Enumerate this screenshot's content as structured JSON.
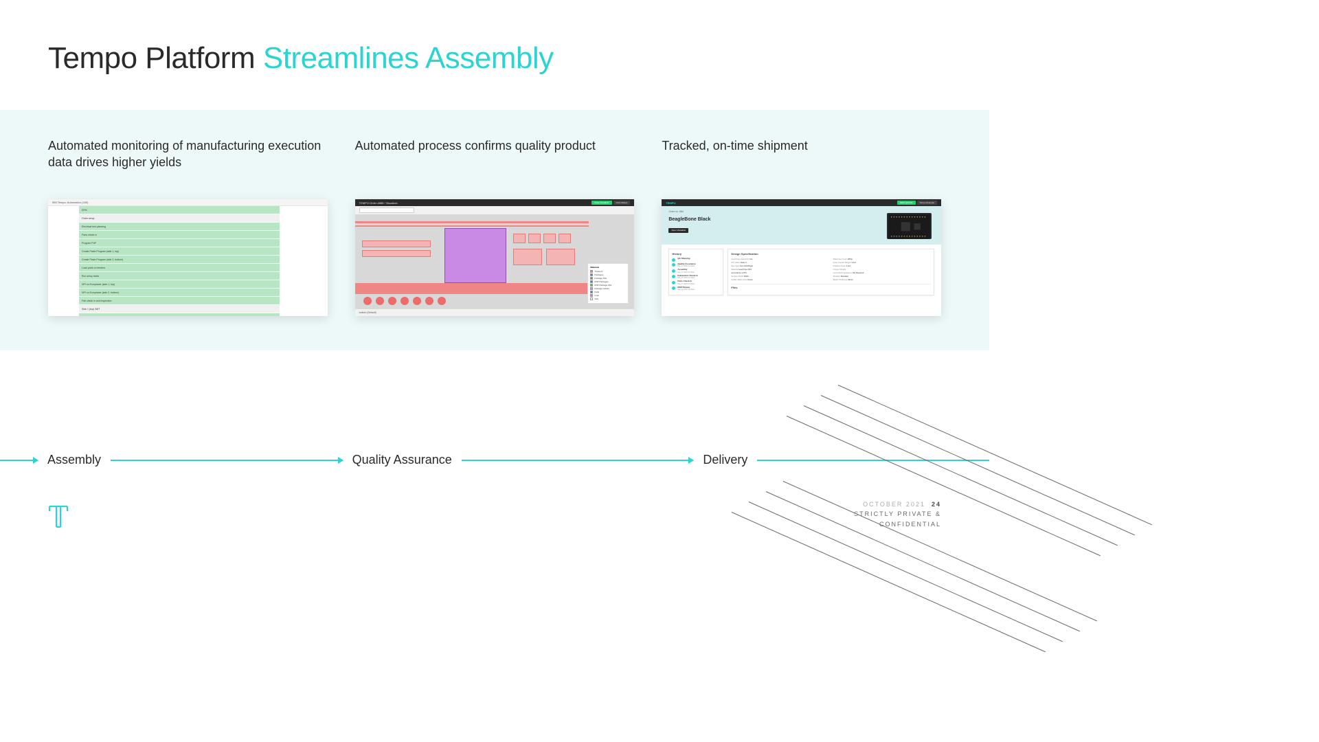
{
  "title": {
    "dark": "Tempo Platform ",
    "accent": "Streamlines Assembly"
  },
  "columns": [
    {
      "desc": "Automated monitoring of manufacturing execution data drives higher yields"
    },
    {
      "desc": "Automated process confirms quality product"
    },
    {
      "desc": "Tracked, on-time shipment"
    }
  ],
  "flow": [
    "Assembly",
    "Quality Assurance",
    "Delivery"
  ],
  "thumb1": {
    "header": "565 Tempo: Automation (165)",
    "rows": [
      {
        "cls": "green",
        "text": "DFM"
      },
      {
        "cls": "sub",
        "text": "Order setup"
      },
      {
        "cls": "green",
        "text": "Electrical test planning"
      },
      {
        "cls": "green",
        "text": "Parts check in"
      },
      {
        "cls": "green",
        "text": "Program PnP"
      },
      {
        "cls": "green",
        "text": "Create Paste Program (side 1, top)"
      },
      {
        "cls": "green",
        "text": "Create Paste Program (side 2, bottom)"
      },
      {
        "cls": "green",
        "text": "Load parts on feeders"
      },
      {
        "cls": "green",
        "text": "Run setup tasks"
      },
      {
        "cls": "green",
        "text": "NPI on Europlacer (side 1, top)"
      },
      {
        "cls": "green",
        "text": "NPI on Europlacer (side 2, bottom)"
      },
      {
        "cls": "green",
        "text": "Fab check in and inspection"
      },
      {
        "cls": "sub",
        "text": "Side 1 (top) SMT"
      },
      {
        "cls": "green",
        "text": "Paste first article (side 1, top)"
      }
    ]
  },
  "thumb2": {
    "title": "TEMPO  Order #885 / Visualizer",
    "btn_close": "Close Visualizer",
    "btn_user": "Chris Wilson",
    "legend_title": "Materials",
    "legend": [
      {
        "color": "#f08585",
        "label": "Traces R"
      },
      {
        "color": "#3a88d6",
        "label": "Packages"
      },
      {
        "color": "#888888",
        "label": "Package Fills"
      },
      {
        "color": "#3a88d6",
        "label": "DNP Packages"
      },
      {
        "color": "#60c060",
        "label": "DNP Package Fills"
      },
      {
        "color": "#c98ae6",
        "label": "Package Labels"
      },
      {
        "color": "#3a88d6",
        "label": "Pads"
      },
      {
        "color": "#d080e0",
        "label": "Inner"
      },
      {
        "color": "#ffffff",
        "label": "Vias"
      }
    ],
    "footer": "bottom (Default)"
  },
  "thumb3": {
    "logo": "TEMPO",
    "btn_quote": "NEW QUOTE",
    "btn_user": "Tempo Example",
    "order_meta": "Order no. 884",
    "product": "BeagleBone Black",
    "open_btn": "Open Visualizer",
    "history_title": "History",
    "history": [
      {
        "title": "QA  Shipping",
        "date": ""
      },
      {
        "title": "Quality Assurance",
        "date": "May 17 2020 01:00am"
      },
      {
        "title": "Assembly",
        "date": "May 17 2020 01:00am"
      },
      {
        "title": "Fabrication Check In",
        "date": "May 17 2020 01:00am"
      },
      {
        "title": "Parts Check In",
        "date": "May 17 2020 01:00am"
      },
      {
        "title": "DFM Review",
        "date": "May 17 2020 01:00am"
      }
    ],
    "spec_title": "Design Specification",
    "spec": [
      {
        "k": "Lead Free Assembly",
        "v": "Yes"
      },
      {
        "k": "Silkscreen Color",
        "v": "White"
      },
      {
        "k": "IPC Class",
        "v": "Class 2"
      },
      {
        "k": "Inner Copper Weight",
        "v": "1.0oz"
      },
      {
        "k": "Flex Type",
        "v": "Non Flex/Rigid"
      },
      {
        "k": "Finished Outer",
        "v": "1.0oz"
      },
      {
        "k": "Material",
        "v": "Lead Free FR4"
      },
      {
        "k": "Copper Weight",
        "v": ""
      },
      {
        "k": "",
        "v": "accordance w IPC"
      },
      {
        "k": "Controlled Impedance",
        "v": "Not Required"
      },
      {
        "k": "Surface Finish",
        "v": "ENIG"
      },
      {
        "k": "Stackup",
        "v": "Standard"
      },
      {
        "k": "Solder Mask Color",
        "v": "Green"
      },
      {
        "k": "Board Thickness",
        "v": "62mm"
      }
    ],
    "files_title": "Files"
  },
  "footer": {
    "date": "OCTOBER 2021",
    "page": "24",
    "conf1": "STRICTLY PRIVATE &",
    "conf2": "CONFIDENTIAL"
  },
  "colors": {
    "accent": "#2cd4d0",
    "band_bg": "#edf8f8",
    "dark": "#2a2a2a"
  }
}
